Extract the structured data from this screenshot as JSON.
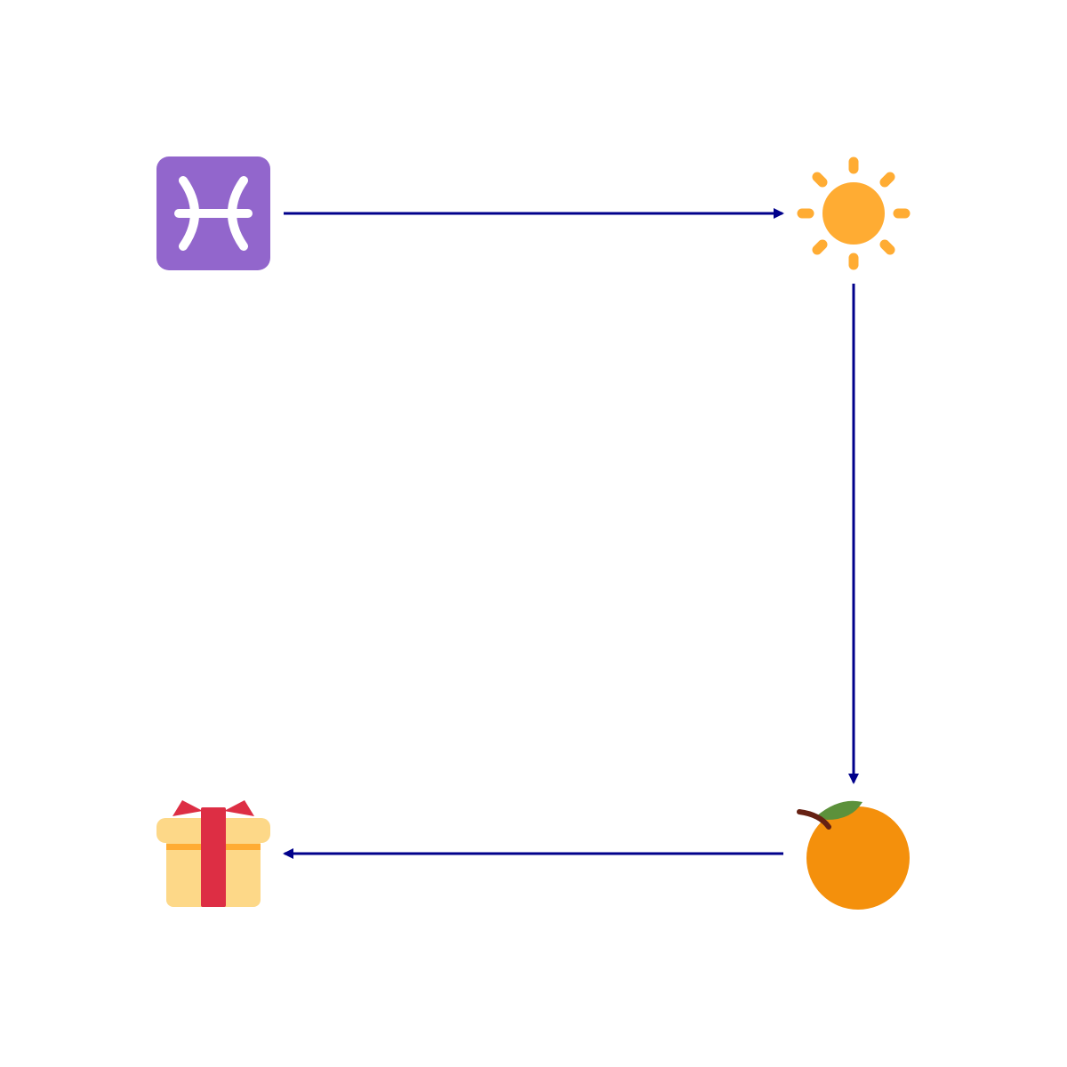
{
  "diagram": {
    "nodes": [
      {
        "id": "pisces",
        "icon": "pisces-icon",
        "label": ""
      },
      {
        "id": "sun",
        "icon": "sun-icon",
        "label": ""
      },
      {
        "id": "orange",
        "icon": "orange-icon",
        "label": ""
      },
      {
        "id": "gift",
        "icon": "gift-icon",
        "label": ""
      }
    ],
    "edges": [
      {
        "from": "pisces",
        "to": "sun"
      },
      {
        "from": "sun",
        "to": "orange"
      },
      {
        "from": "orange",
        "to": "gift"
      }
    ],
    "colors": {
      "arrow": "#00008b",
      "pisces_bg": "#9266cc",
      "sun": "#ffac33",
      "orange": "#f4900c",
      "leaf": "#5c913b",
      "stem": "#662113",
      "gift_box": "#fdd888",
      "gift_band": "#ffac33",
      "gift_ribbon": "#dd2e44"
    }
  }
}
